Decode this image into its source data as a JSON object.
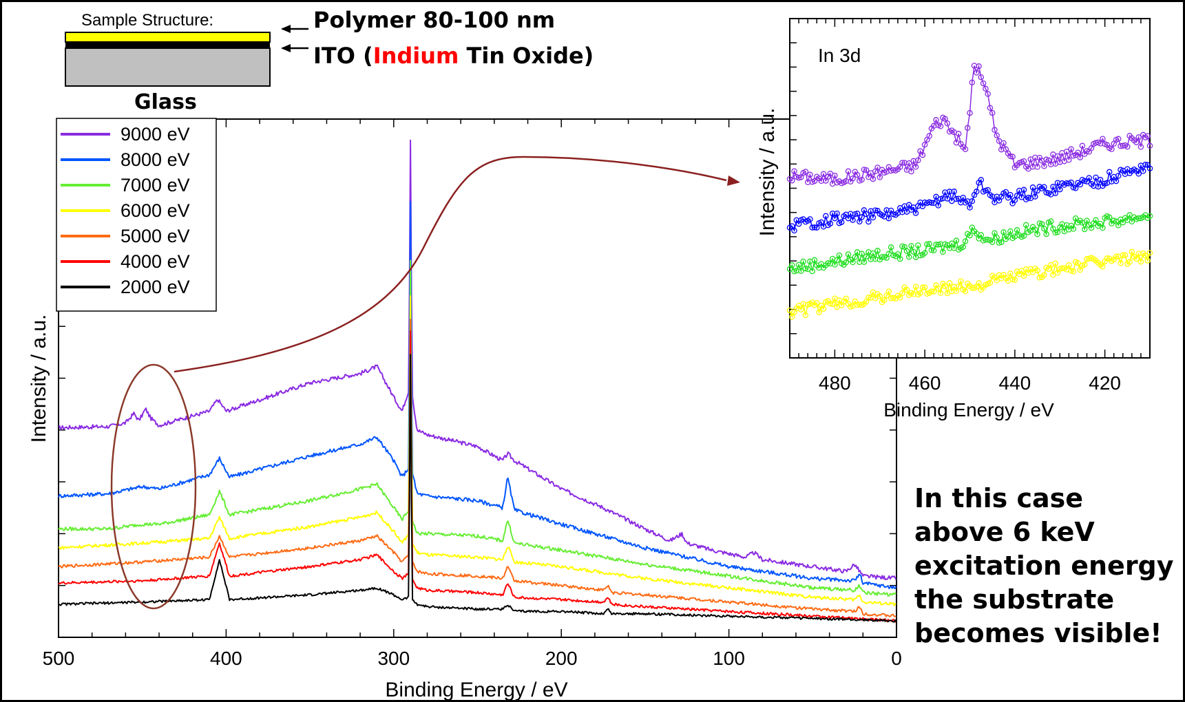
{
  "sample_structure": {
    "title": "Sample Structure:",
    "polymer_label": "Polymer 80-100 nm",
    "ito_prefix": "ITO (",
    "ito_highlight": "Indium",
    "ito_suffix": " Tin Oxide)",
    "glass_label": "Glass",
    "colors": {
      "polymer": "#ffff00",
      "ito": "#000000",
      "glass": "#c0c0c0",
      "highlight_text": "#ff0000"
    }
  },
  "annotation": {
    "lines": [
      "In this case",
      "above 6 keV",
      "excitation energy",
      "the substrate",
      "becomes visible!"
    ]
  },
  "chart_data": [
    {
      "type": "line",
      "xlabel": "Binding Energy / eV",
      "ylabel": "Intensity / a.u.",
      "xlim": [
        500,
        0
      ],
      "xticks": [
        500,
        400,
        300,
        200,
        100,
        0
      ],
      "x_reversed": true,
      "y_tick_labels_shown": false,
      "legend": {
        "placement": "top-left",
        "entries": [
          "9000 eV",
          "8000 eV",
          "7000 eV",
          "6000 eV",
          "5000 eV",
          "4000 eV",
          "2000 eV"
        ]
      },
      "series": [
        {
          "name": "9000 eV",
          "color": "#8a2be2",
          "x": [
            500,
            470,
            460,
            455,
            452,
            448,
            445,
            440,
            410,
            405,
            400,
            350,
            320,
            310,
            300,
            295,
            291,
            290,
            289,
            286,
            280,
            250,
            235,
            232,
            228,
            200,
            175,
            150,
            135,
            128,
            125,
            110,
            90,
            85,
            80,
            30,
            25,
            22,
            20,
            0
          ],
          "y": [
            2.9,
            2.95,
            3.1,
            3.5,
            3.2,
            3.7,
            3.3,
            3.0,
            3.6,
            4.1,
            3.6,
            4.8,
            5.2,
            5.5,
            4.2,
            3.6,
            4.5,
            15.1,
            4.3,
            2.8,
            2.6,
            2.1,
            1.5,
            1.8,
            1.5,
            0.3,
            -0.5,
            -1.4,
            -1.9,
            -1.6,
            -2.0,
            -2.3,
            -2.6,
            -2.4,
            -2.7,
            -3.2,
            -2.9,
            -3.2,
            -3.4,
            -3.5
          ]
        },
        {
          "name": "8000 eV",
          "color": "#0055ff",
          "x": [
            500,
            470,
            450,
            440,
            410,
            404,
            398,
            350,
            320,
            310,
            300,
            295,
            291,
            290,
            289,
            286,
            280,
            250,
            235,
            232,
            228,
            200,
            150,
            100,
            50,
            25,
            22,
            20,
            0
          ],
          "y": [
            0.0,
            0.1,
            0.4,
            0.3,
            0.9,
            1.6,
            0.8,
            1.7,
            2.2,
            2.5,
            1.5,
            0.8,
            1.2,
            12.5,
            1.0,
            0.1,
            0.0,
            -0.2,
            -0.5,
            0.8,
            -0.6,
            -1.2,
            -2.2,
            -3.0,
            -3.5,
            -3.6,
            -3.3,
            -3.7,
            -3.9
          ]
        },
        {
          "name": "7000 eV",
          "color": "#66ee33",
          "x": [
            500,
            470,
            450,
            440,
            410,
            404,
            398,
            350,
            320,
            310,
            300,
            295,
            291,
            290,
            289,
            286,
            280,
            250,
            235,
            232,
            228,
            200,
            150,
            100,
            50,
            25,
            22,
            20,
            0
          ],
          "y": [
            -1.4,
            -1.4,
            -1.2,
            -1.2,
            -0.8,
            0.2,
            -0.8,
            -0.2,
            0.3,
            0.5,
            -0.5,
            -1.0,
            -0.6,
            10.0,
            -1.0,
            -1.6,
            -1.6,
            -1.7,
            -1.9,
            -1.0,
            -2.0,
            -2.3,
            -2.9,
            -3.4,
            -3.9,
            -4.0,
            -3.8,
            -4.1,
            -4.2
          ]
        },
        {
          "name": "6000 eV",
          "color": "#ffff00",
          "x": [
            500,
            450,
            410,
            404,
            398,
            350,
            320,
            310,
            300,
            295,
            291,
            290,
            289,
            286,
            280,
            250,
            235,
            232,
            228,
            200,
            150,
            100,
            50,
            25,
            22,
            20,
            0
          ],
          "y": [
            -2.2,
            -2.0,
            -1.8,
            -0.9,
            -1.8,
            -1.3,
            -0.9,
            -0.7,
            -1.5,
            -2.0,
            -1.6,
            8.5,
            -2.0,
            -2.4,
            -2.5,
            -2.6,
            -2.7,
            -2.1,
            -2.8,
            -3.0,
            -3.5,
            -3.9,
            -4.3,
            -4.4,
            -4.2,
            -4.5,
            -4.6
          ]
        },
        {
          "name": "5000 eV",
          "color": "#ff6a13",
          "x": [
            500,
            450,
            410,
            404,
            398,
            350,
            320,
            310,
            300,
            295,
            291,
            290,
            289,
            286,
            280,
            250,
            235,
            232,
            228,
            200,
            175,
            172,
            170,
            150,
            100,
            50,
            25,
            22,
            20,
            0
          ],
          "y": [
            -3.0,
            -2.8,
            -2.6,
            -1.7,
            -2.6,
            -2.2,
            -1.9,
            -1.7,
            -2.4,
            -2.8,
            -2.5,
            7.5,
            -2.8,
            -3.2,
            -3.3,
            -3.4,
            -3.5,
            -3.0,
            -3.6,
            -3.8,
            -4.0,
            -3.8,
            -4.1,
            -4.2,
            -4.5,
            -4.8,
            -4.9,
            -4.7,
            -5.0,
            -5.1
          ]
        },
        {
          "name": "4000 eV",
          "color": "#ff0000",
          "x": [
            500,
            450,
            410,
            404,
            398,
            350,
            320,
            310,
            300,
            295,
            291,
            290,
            289,
            286,
            280,
            250,
            235,
            232,
            228,
            200,
            175,
            172,
            170,
            150,
            100,
            50,
            0
          ],
          "y": [
            -3.7,
            -3.6,
            -3.4,
            -2.0,
            -3.4,
            -3.0,
            -2.7,
            -2.5,
            -3.2,
            -3.5,
            -3.3,
            7.0,
            -3.5,
            -3.9,
            -4.0,
            -4.1,
            -4.2,
            -3.7,
            -4.3,
            -4.4,
            -4.5,
            -4.3,
            -4.6,
            -4.7,
            -4.9,
            -5.1,
            -5.3
          ]
        },
        {
          "name": "2000 eV",
          "color": "#000000",
          "x": [
            500,
            450,
            410,
            404,
            398,
            350,
            320,
            310,
            300,
            295,
            291,
            290,
            289,
            286,
            280,
            250,
            235,
            232,
            228,
            200,
            175,
            172,
            170,
            150,
            100,
            50,
            0
          ],
          "y": [
            -4.6,
            -4.5,
            -4.4,
            -2.7,
            -4.4,
            -4.2,
            -4.0,
            -3.9,
            -4.2,
            -4.4,
            -4.3,
            6.0,
            -4.4,
            -4.6,
            -4.7,
            -4.8,
            -4.8,
            -4.6,
            -4.9,
            -4.9,
            -5.0,
            -4.8,
            -5.0,
            -5.0,
            -5.1,
            -5.2,
            -5.3
          ]
        }
      ]
    },
    {
      "type": "scatter",
      "title": "In 3d",
      "xlabel": "Binding Energy / eV",
      "ylabel": "Intensity / a.u.",
      "xlim": [
        490,
        410
      ],
      "xticks": [
        480,
        460,
        440,
        420
      ],
      "x_reversed": true,
      "y_tick_labels_shown": false,
      "series": [
        {
          "name": "9000 eV",
          "color": "#8a2be2",
          "x": [
            490,
            480,
            470,
            462,
            458,
            456,
            453,
            451,
            449,
            447,
            444,
            440,
            430,
            420,
            410
          ],
          "y": [
            3.1,
            3.0,
            3.2,
            3.4,
            4.5,
            4.7,
            4.2,
            3.8,
            6.2,
            5.8,
            4.2,
            3.4,
            3.6,
            4.0,
            4.1
          ]
        },
        {
          "name": "8000 eV",
          "color": "#0000ff",
          "x": [
            490,
            480,
            470,
            460,
            455,
            450,
            448,
            445,
            440,
            430,
            420,
            410
          ],
          "y": [
            1.7,
            1.9,
            2.0,
            2.2,
            2.6,
            2.3,
            2.9,
            2.5,
            2.5,
            2.8,
            3.0,
            3.4
          ]
        },
        {
          "name": "7000 eV",
          "color": "#22dd22",
          "x": [
            490,
            480,
            470,
            460,
            452,
            449,
            446,
            440,
            430,
            420,
            410
          ],
          "y": [
            0.5,
            0.7,
            0.9,
            1.0,
            1.2,
            1.6,
            1.3,
            1.5,
            1.7,
            1.8,
            2.0
          ]
        },
        {
          "name": "6000 eV",
          "color": "#ffff00",
          "x": [
            490,
            480,
            470,
            460,
            450,
            440,
            430,
            420,
            410
          ],
          "y": [
            -0.7,
            -0.5,
            -0.3,
            -0.1,
            0.0,
            0.3,
            0.5,
            0.7,
            0.9
          ]
        }
      ]
    }
  ]
}
